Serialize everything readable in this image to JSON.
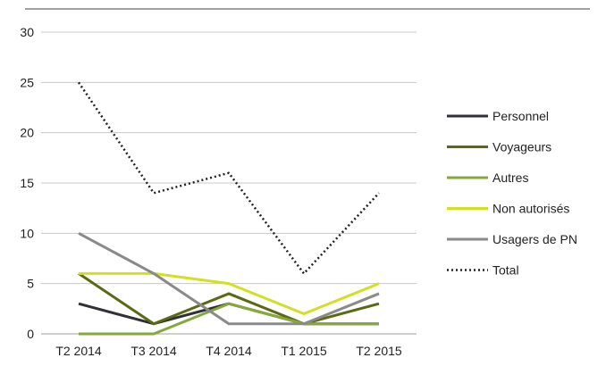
{
  "chart_data": {
    "type": "line",
    "categories": [
      "T2 2014",
      "T3 2014",
      "T4 2014",
      "T1 2015",
      "T2 2015"
    ],
    "ylim": [
      0,
      30
    ],
    "yticks": [
      0,
      5,
      10,
      15,
      20,
      25,
      30
    ],
    "grid": true,
    "legend_position": "right",
    "series": [
      {
        "name": "Personnel",
        "values": [
          3,
          1,
          3,
          1,
          1
        ],
        "color": "#2f3136",
        "dash": "solid"
      },
      {
        "name": "Voyageurs",
        "values": [
          6,
          1,
          4,
          1,
          3
        ],
        "color": "#5a6a12",
        "dash": "solid"
      },
      {
        "name": "Autres",
        "values": [
          0,
          0,
          3,
          1,
          1
        ],
        "color": "#86a83a",
        "dash": "solid"
      },
      {
        "name": "Non autorisés",
        "values": [
          6,
          6,
          5,
          2,
          5
        ],
        "color": "#d3df22",
        "dash": "solid"
      },
      {
        "name": "Usagers de PN",
        "values": [
          10,
          6,
          1,
          1,
          4
        ],
        "color": "#8a8a8a",
        "dash": "solid"
      },
      {
        "name": "Total",
        "values": [
          25,
          14,
          16,
          6,
          14
        ],
        "color": "#222222",
        "dash": "dotted"
      }
    ]
  }
}
